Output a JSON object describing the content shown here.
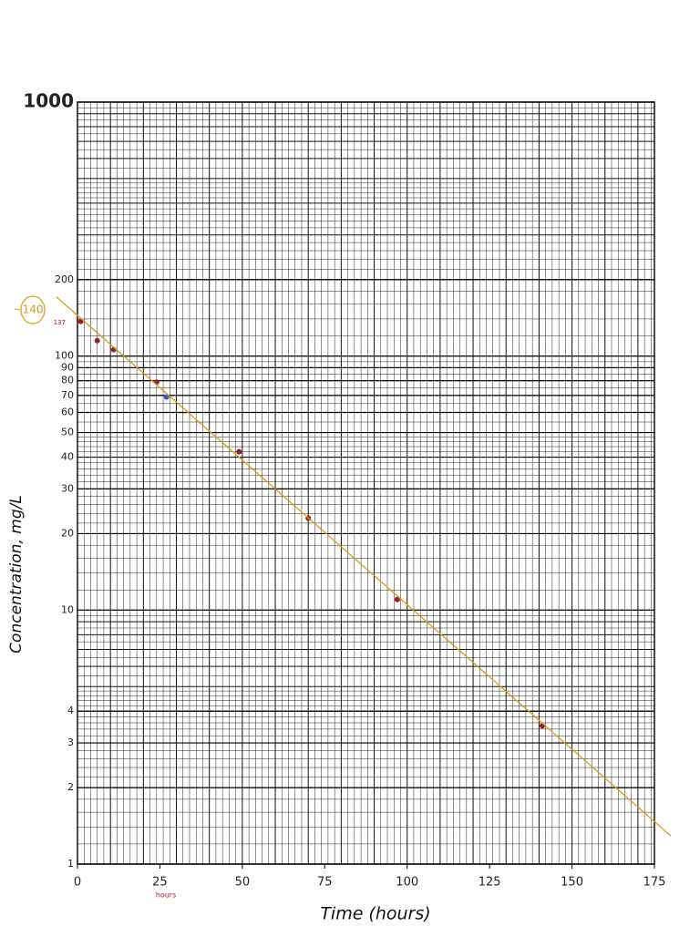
{
  "chart_data": {
    "type": "scatter",
    "log_y": true,
    "xlabel": "Time (hours)",
    "ylabel": "Concentration, mg/L",
    "xlim": [
      0,
      175
    ],
    "ylim": [
      1,
      1000
    ],
    "xticks": [
      0,
      25,
      50,
      75,
      100,
      125,
      150,
      175
    ],
    "yticks": [
      1,
      2,
      3,
      4,
      10,
      20,
      30,
      40,
      50,
      60,
      70,
      80,
      90,
      100,
      200,
      1000
    ],
    "annotations": [
      "~140",
      "137",
      "hours"
    ],
    "series": [
      {
        "color": "#9b1c2c",
        "x": [
          1,
          6,
          11,
          24,
          49,
          70,
          97,
          141
        ],
        "values": [
          137,
          115,
          106,
          79,
          42,
          23,
          11,
          3.5
        ]
      },
      {
        "color": "#3a5fcd",
        "x": [
          27
        ],
        "values": [
          69
        ]
      },
      {
        "type": "line",
        "color": "#d4a017",
        "x": [
          -6.4,
          180
        ],
        "values": [
          171,
          1.29
        ]
      }
    ]
  }
}
